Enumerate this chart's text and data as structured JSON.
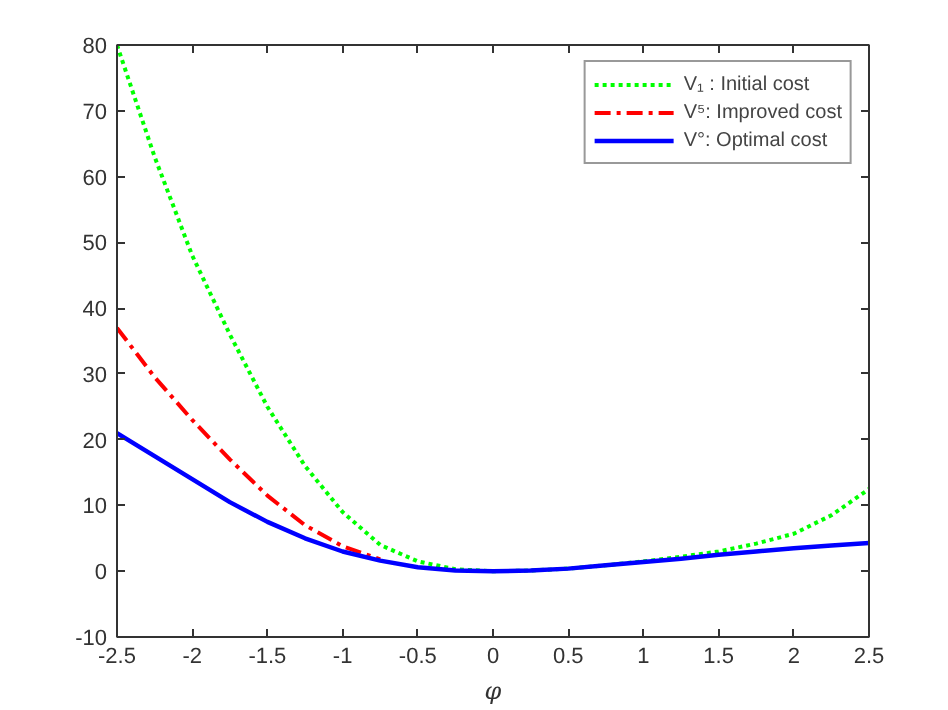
{
  "chart_data": {
    "type": "line",
    "xlabel": "φ",
    "x": [
      -2.5,
      -2.25,
      -2,
      -1.75,
      -1.5,
      -1.25,
      -1,
      -0.75,
      -0.5,
      -0.25,
      0,
      0.25,
      0.5,
      0.75,
      1,
      1.25,
      1.5,
      1.75,
      2,
      2.25,
      2.5
    ],
    "series": [
      {
        "name": "V₁ : Initial cost",
        "color": "#00ff00",
        "line_style": "dotted",
        "values": [
          80,
          63,
          48,
          36,
          25,
          16,
          9,
          4,
          1.5,
          0.3,
          0,
          0.1,
          0.4,
          0.9,
          1.5,
          2.2,
          3,
          4.2,
          5.7,
          8.5,
          12.5
        ]
      },
      {
        "name": "V⁵: Improved cost",
        "color": "#ff0000",
        "line_style": "dashdot",
        "values": [
          37,
          29.5,
          23,
          17,
          11.5,
          7,
          3.8,
          1.8,
          null,
          null,
          null,
          null,
          null,
          null,
          null,
          null,
          null,
          null,
          null,
          null,
          null
        ]
      },
      {
        "name": "V°: Optimal cost",
        "color": "#0000ff",
        "line_style": "solid",
        "values": [
          21,
          17.5,
          14,
          10.5,
          7.5,
          5,
          3,
          1.6,
          0.6,
          0.1,
          0,
          0.1,
          0.4,
          0.9,
          1.4,
          1.9,
          2.5,
          3,
          3.5,
          3.9,
          4.3
        ]
      }
    ],
    "xlim": [
      -2.5,
      2.5
    ],
    "ylim": [
      -10,
      80
    ],
    "xticks": [
      -2.5,
      -2,
      -1.5,
      -1,
      -0.5,
      0,
      0.5,
      1,
      1.5,
      2,
      2.5
    ],
    "yticks": [
      -10,
      0,
      10,
      20,
      30,
      40,
      50,
      60,
      70,
      80
    ],
    "grid": false,
    "legend": "top right",
    "marker": "none"
  }
}
